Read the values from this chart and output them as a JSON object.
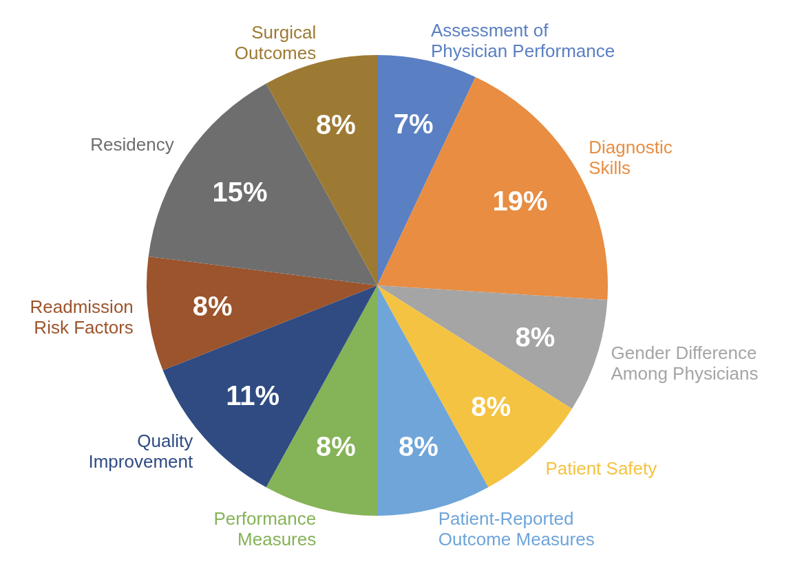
{
  "chart_data": {
    "type": "pie",
    "categories": [
      "Assessment of Physician Performance",
      "Diagnostic Skills",
      "Gender Difference Among Physicians",
      "Patient Safety",
      "Patient-Reported Outcome Measures",
      "Performance Measures",
      "Quality Improvement",
      "Readmission Risk Factors",
      "Residency",
      "Surgical Outcomes"
    ],
    "values": [
      7,
      19,
      8,
      8,
      8,
      8,
      11,
      8,
      15,
      8
    ],
    "value_labels": [
      "7%",
      "19%",
      "8%",
      "8%",
      "8%",
      "8%",
      "11%",
      "8%",
      "15%",
      "8%"
    ],
    "colors": [
      "#5a7fc3",
      "#e88d42",
      "#a5a5a5",
      "#f5c342",
      "#6fa5d9",
      "#85b357",
      "#2f4b82",
      "#9b542c",
      "#6e6e6e",
      "#9d7a33"
    ]
  }
}
